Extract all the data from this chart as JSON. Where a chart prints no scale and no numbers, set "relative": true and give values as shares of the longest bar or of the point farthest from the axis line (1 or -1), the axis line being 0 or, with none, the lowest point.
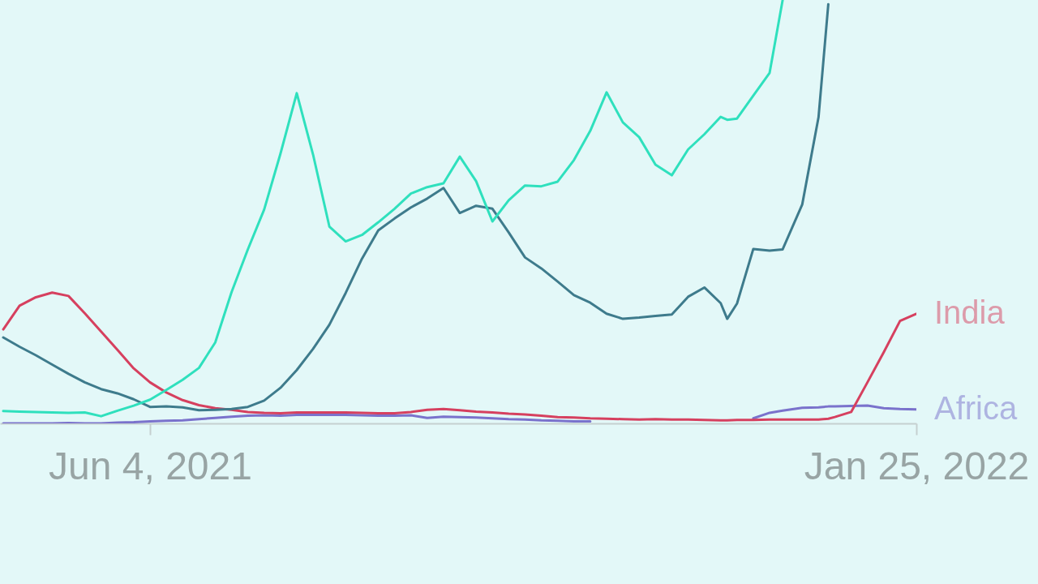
{
  "chart_data": {
    "type": "line",
    "relative": true,
    "x": [
      "2021-04-20",
      "2021-04-25",
      "2021-04-30",
      "2021-05-05",
      "2021-05-10",
      "2021-05-15",
      "2021-05-20",
      "2021-05-25",
      "2021-05-30",
      "2021-06-04",
      "2021-06-09",
      "2021-06-14",
      "2021-06-19",
      "2021-06-24",
      "2021-06-29",
      "2021-07-04",
      "2021-07-09",
      "2021-07-14",
      "2021-07-19",
      "2021-07-24",
      "2021-07-29",
      "2021-08-03",
      "2021-08-08",
      "2021-08-13",
      "2021-08-18",
      "2021-08-23",
      "2021-08-28",
      "2021-09-02",
      "2021-09-07",
      "2021-09-12",
      "2021-09-17",
      "2021-09-22",
      "2021-09-27",
      "2021-10-02",
      "2021-10-07",
      "2021-10-12",
      "2021-10-17",
      "2021-10-22",
      "2021-10-27",
      "2021-11-01",
      "2021-11-06",
      "2021-11-11",
      "2021-11-16",
      "2021-11-21",
      "2021-11-26",
      "2021-11-28",
      "2021-12-01",
      "2021-12-06",
      "2021-12-11",
      "2021-12-15",
      "2021-12-21",
      "2021-12-26",
      "2021-12-29",
      "2021-12-31",
      "2022-01-05",
      "2022-01-10",
      "2022-01-15",
      "2022-01-20",
      "2022-01-25"
    ],
    "xlim": [
      "2021-04-19",
      "2022-01-25"
    ],
    "xticks": [
      {
        "value": "2021-06-04",
        "label": "Jun 4, 2021"
      },
      {
        "value": "2022-01-25",
        "label": "Jan 25, 2022"
      }
    ],
    "series": [
      {
        "color": "#2fe0bd",
        "values": [
          0.029,
          0.028,
          0.027,
          0.026,
          0.025,
          0.026,
          0.017,
          0.03,
          0.042,
          0.056,
          0.079,
          0.103,
          0.131,
          0.191,
          0.31,
          0.411,
          0.505,
          0.637,
          0.78,
          0.635,
          0.465,
          0.43,
          0.445,
          0.475,
          0.507,
          0.543,
          0.558,
          0.567,
          0.63,
          0.572,
          0.477,
          0.527,
          0.562,
          0.56,
          0.571,
          0.622,
          0.691,
          0.782,
          0.711,
          0.676,
          0.611,
          0.586,
          0.647,
          0.683,
          0.724,
          0.717,
          0.72,
          0.774,
          0.828,
          1,
          null,
          null,
          null,
          null,
          null,
          null,
          null,
          null,
          null
        ]
      },
      {
        "color": "#3e7b8c",
        "values": [
          0.203,
          0.181,
          0.161,
          0.139,
          0.117,
          0.097,
          0.081,
          0.071,
          0.057,
          0.039,
          0.04,
          0.038,
          0.031,
          0.032,
          0.034,
          0.039,
          0.054,
          0.084,
          0.126,
          0.176,
          0.233,
          0.308,
          0.389,
          0.456,
          0.484,
          0.51,
          0.531,
          0.556,
          0.497,
          0.514,
          0.507,
          0.451,
          0.392,
          0.366,
          0.335,
          0.303,
          0.285,
          0.259,
          0.247,
          0.25,
          0.254,
          0.257,
          0.299,
          0.321,
          0.284,
          0.247,
          0.283,
          0.412,
          0.408,
          0.411,
          0.517,
          0.723,
          0.99,
          null,
          null,
          null,
          null,
          null,
          null
        ]
      },
      {
        "name": "India",
        "color": "#d6405f",
        "values": [
          0.222,
          0.278,
          0.298,
          0.309,
          0.301,
          0.26,
          0.217,
          0.174,
          0.13,
          0.097,
          0.073,
          0.055,
          0.043,
          0.036,
          0.032,
          0.027,
          0.025,
          0.024,
          0.026,
          0.026,
          0.026,
          0.026,
          0.025,
          0.024,
          0.024,
          0.027,
          0.032,
          0.034,
          0.031,
          0.028,
          0.026,
          0.023,
          0.021,
          0.018,
          0.015,
          0.014,
          0.012,
          0.011,
          0.01,
          0.009,
          0.01,
          0.009,
          0.009,
          0.008,
          0.007,
          0.007,
          0.008,
          0.008,
          0.009,
          0.009,
          0.009,
          0.009,
          0.011,
          0.015,
          0.027,
          0.097,
          0.168,
          0.242,
          0.259
        ]
      },
      {
        "name": "Africa",
        "color": "#7a72cc",
        "values": [
          0,
          0,
          0,
          0,
          0.001,
          0,
          0,
          0.002,
          0.003,
          0.005,
          0.006,
          0.007,
          0.01,
          0.013,
          0.016,
          0.018,
          0.019,
          0.018,
          0.02,
          0.02,
          0.02,
          0.02,
          0.019,
          0.018,
          0.018,
          0.019,
          0.013,
          0.016,
          0.015,
          0.014,
          0.012,
          0.01,
          0.009,
          0.007,
          0.006,
          0.005,
          0.005,
          null,
          null,
          null,
          null,
          null,
          null,
          null,
          null,
          null,
          null,
          0.012,
          0.025,
          0.03,
          0.037,
          0.038,
          0.04,
          0.04,
          0.041,
          0.042,
          0.036,
          0.034,
          0.033
        ]
      }
    ]
  }
}
